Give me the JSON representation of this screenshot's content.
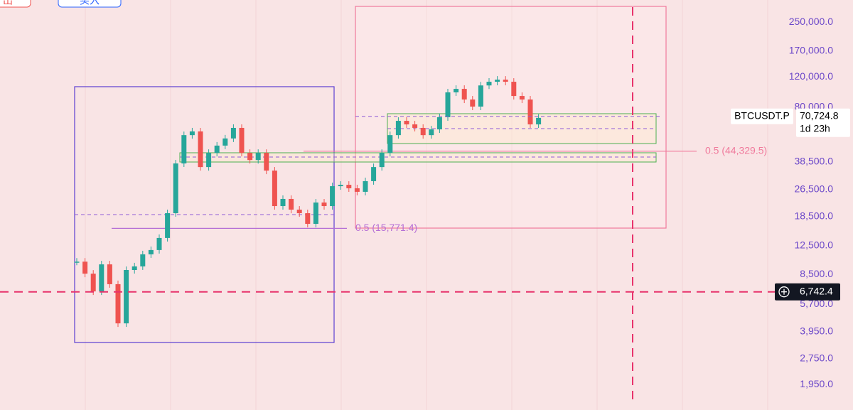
{
  "chart_data": {
    "type": "candle-line",
    "buttons": [
      "出",
      "买入"
    ],
    "series": [
      {
        "name": "BTCUSDT.P",
        "up_color": "#26a69a",
        "down_color": "#ef5350",
        "values": [
          10100,
          8600,
          6780,
          9740,
          7470,
          4420,
          9030,
          9480,
          11140,
          11800,
          13870,
          19330,
          37640,
          55000,
          57800,
          35850,
          43350,
          47800,
          52600,
          60600,
          43350,
          39400,
          43350,
          34200,
          21260,
          23400,
          20270,
          19330,
          16760,
          22300,
          21260,
          27750,
          28280,
          26980,
          25740,
          29690,
          35850,
          43350,
          55000,
          66600,
          63500,
          60600,
          55000,
          59400,
          69900,
          97500,
          102200,
          88600,
          80600,
          107000,
          112400,
          115600,
          112400,
          92900,
          88600,
          63500,
          69300
        ]
      }
    ],
    "log_scale": true,
    "ylim": [
      1385,
      336000
    ],
    "yticks": [
      {
        "value": 250000,
        "label": "250,000.0"
      },
      {
        "value": 170000,
        "label": "170,000.0"
      },
      {
        "value": 120000,
        "label": "120,000.0"
      },
      {
        "value": 80000,
        "label": "80,000.0"
      },
      {
        "value": 38500,
        "label": "38,500.0"
      },
      {
        "value": 26500,
        "label": "26,500.0"
      },
      {
        "value": 18500,
        "label": "18,500.0"
      },
      {
        "value": 12500,
        "label": "12,500.0"
      },
      {
        "value": 8500,
        "label": "8,500.0"
      },
      {
        "value": 5700,
        "label": "5,700.0"
      },
      {
        "value": 3950,
        "label": "3,950.0"
      },
      {
        "value": 2750,
        "label": "2,750.0"
      },
      {
        "value": 1950,
        "label": "1,950.0"
      }
    ],
    "last_price": {
      "value": 70724.8,
      "label": "70,724.8",
      "countdown": "1d 23h"
    },
    "crosshair": {
      "value": 6742.4,
      "label": "6,742.4"
    },
    "fib_levels": [
      {
        "value": 44329.5,
        "label": "0.5 (44,329.5)",
        "color": "#f07a9c"
      },
      {
        "value": 15771.4,
        "label": "0.5 (15,771.4)",
        "color": "#b56fd6"
      }
    ]
  }
}
